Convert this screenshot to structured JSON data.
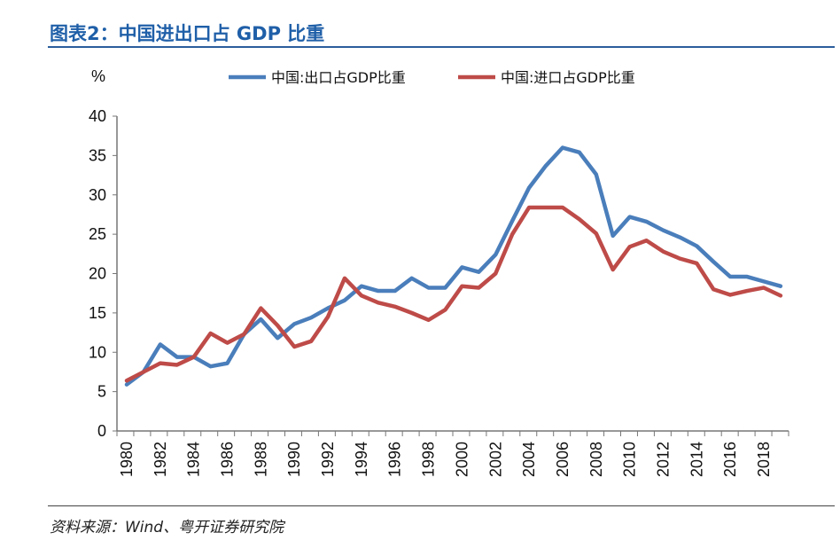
{
  "title": "图表2：中国进出口占 GDP 比重",
  "source": "资料来源：Wind、粤开证券研究院",
  "chart_data": {
    "type": "line",
    "title": "",
    "xlabel": "",
    "ylabel": "%",
    "ylim": [
      0,
      40
    ],
    "yticks": [
      0,
      5,
      10,
      15,
      20,
      25,
      30,
      35,
      40
    ],
    "xticks": [
      "1980",
      "1982",
      "1984",
      "1986",
      "1988",
      "1990",
      "1992",
      "1994",
      "1996",
      "1998",
      "2000",
      "2002",
      "2004",
      "2006",
      "2008",
      "2010",
      "2012",
      "2014",
      "2016",
      "2018"
    ],
    "grid": false,
    "legend_position": "top",
    "x": [
      1980,
      1981,
      1982,
      1983,
      1984,
      1985,
      1986,
      1987,
      1988,
      1989,
      1990,
      1991,
      1992,
      1993,
      1994,
      1995,
      1996,
      1997,
      1998,
      1999,
      2000,
      2001,
      2002,
      2003,
      2004,
      2005,
      2006,
      2007,
      2008,
      2009,
      2010,
      2011,
      2012,
      2013,
      2014,
      2015,
      2016,
      2017,
      2018,
      2019
    ],
    "series": [
      {
        "name": "中国:出口占GDP比重",
        "color": "#4a7ebb",
        "values": [
          5.9,
          7.5,
          11.0,
          9.4,
          9.4,
          8.2,
          8.6,
          12.3,
          14.2,
          11.8,
          13.6,
          14.4,
          15.6,
          16.6,
          18.4,
          17.8,
          17.8,
          19.4,
          18.2,
          18.2,
          20.8,
          20.2,
          22.4,
          26.7,
          30.9,
          33.7,
          36.0,
          35.4,
          32.6,
          24.8,
          27.2,
          26.6,
          25.5,
          24.6,
          23.5,
          21.5,
          19.6,
          19.6,
          19.0,
          18.4
        ]
      },
      {
        "name": "中国:进口占GDP比重",
        "color": "#be4b48",
        "values": [
          6.4,
          7.5,
          8.6,
          8.4,
          9.4,
          12.4,
          11.2,
          12.3,
          15.6,
          13.4,
          10.7,
          11.4,
          14.5,
          19.4,
          17.2,
          16.3,
          15.8,
          15.0,
          14.1,
          15.4,
          18.4,
          18.2,
          20.0,
          25.0,
          28.4,
          28.4,
          28.4,
          26.9,
          25.1,
          20.5,
          23.4,
          24.2,
          22.8,
          21.9,
          21.3,
          18.0,
          17.3,
          17.8,
          18.2,
          17.2
        ]
      }
    ]
  }
}
